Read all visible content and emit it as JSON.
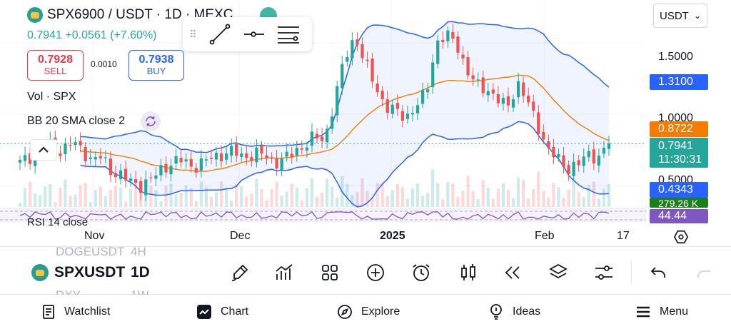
{
  "header": {
    "symbol_title": "SPX6900 / USDT · 1D · MEXC",
    "last_price": "0.7941",
    "change": "+0.0561",
    "change_pct": "(+7.60%)"
  },
  "trade": {
    "sell_price": "0.7928",
    "sell_label": "SELL",
    "spread": "0.0010",
    "buy_price": "0.7938",
    "buy_label": "BUY"
  },
  "indicators": {
    "volume": "Vol · SPX",
    "bollinger": "BB 20 SMA close 2",
    "rsi": "RSI 14 close"
  },
  "currency_select": {
    "value": "USDT"
  },
  "price_axis": {
    "ticks": [
      "1.5000",
      "1.0000",
      "0.5000"
    ],
    "tag_bb_upper": "1.3100",
    "tag_bb_basis": "0.8722",
    "tag_last_price": "0.7941",
    "tag_countdown": "11:30:31",
    "tag_bb_lower": "0.4343",
    "tag_volume": "279.26 K",
    "tag_rsi": "44.44"
  },
  "time_axis": {
    "labels": [
      "Nov",
      "Dec",
      "2025",
      "Feb",
      "17"
    ]
  },
  "toolbar": {
    "symbol": "SPXUSDT",
    "interval": "1D",
    "ghost_symbol_above": "DOGEUSDT",
    "ghost_interval_above": "4H",
    "ghost_symbol_below": "DXY",
    "ghost_interval_below": "1W"
  },
  "nav": {
    "watchlist": "Watchlist",
    "chart": "Chart",
    "explore": "Explore",
    "ideas": "Ideas",
    "menu": "Menu"
  },
  "colors": {
    "up": "#26a69a",
    "down": "#ef5350",
    "bb_band": "#2962ff",
    "bb_basis": "#f57c00",
    "rsi": "#7e57c2",
    "accent": "#2962ff"
  },
  "icons": {
    "drawing_tools": [
      "grip-icon",
      "trend-line-icon",
      "horizontal-ray-icon",
      "settings-lines-icon"
    ],
    "toolbar": [
      "brush-icon",
      "indicators-icon",
      "grid-icon",
      "plus-circle-icon",
      "alarm-icon",
      "candles-icon",
      "replay-icon",
      "layers-icon",
      "sliders-icon",
      "undo-icon"
    ],
    "nav": [
      "watchlist-icon",
      "chart-icon",
      "explore-icon",
      "ideas-icon",
      "menu-icon"
    ]
  },
  "chart_data": {
    "type": "candlestick",
    "interval": "1D",
    "price_range": [
      0.35,
      1.75
    ],
    "price_ticks": [
      1.5,
      1.0,
      0.5
    ],
    "last_price": 0.7941,
    "bollinger": {
      "period": 20,
      "stddev": 2,
      "upper": 1.31,
      "basis": 0.8722,
      "lower": 0.4343
    },
    "volume_last": "279.26 K",
    "rsi_last": 44.44,
    "time_labels": [
      "Nov",
      "Dec",
      "2025",
      "Feb",
      "17"
    ],
    "close_path": [
      0.66,
      0.7,
      0.72,
      0.78,
      0.74,
      0.8,
      0.76,
      0.68,
      0.7,
      0.6,
      0.57,
      0.52,
      0.5,
      0.55,
      0.62,
      0.66,
      0.68,
      0.63,
      0.66,
      0.7,
      0.72,
      0.74,
      0.7,
      0.72,
      0.72,
      0.66,
      0.68,
      0.74,
      0.78,
      0.84,
      0.82,
      1.1,
      1.4,
      1.55,
      1.35,
      1.2,
      1.05,
      1.02,
      0.98,
      1.05,
      1.15,
      1.5,
      1.55,
      1.5,
      1.3,
      1.2,
      1.18,
      1.1,
      1.05,
      1.22,
      1.08,
      0.92,
      0.75,
      0.68,
      0.62,
      0.65,
      0.72,
      0.7,
      0.79
    ]
  }
}
